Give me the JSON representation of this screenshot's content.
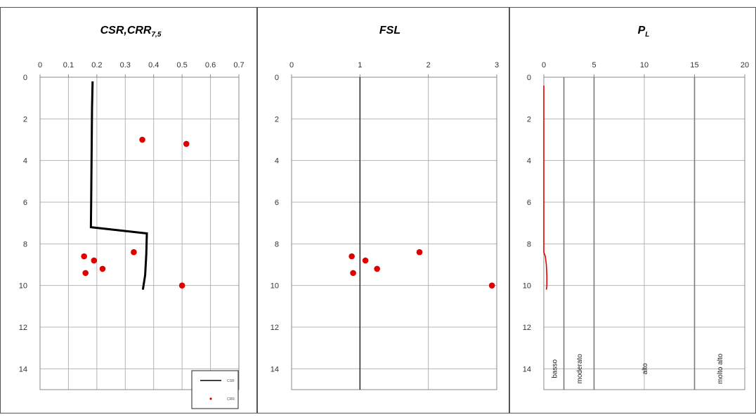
{
  "chart_data": [
    {
      "type": "scatter",
      "title": "CSR,CRR",
      "title_subscript": "7,5",
      "xlim": [
        0,
        0.7
      ],
      "ylim": [
        0,
        15
      ],
      "x_ticks": [
        "0",
        "0.1",
        "0.2",
        "0.3",
        "0.4",
        "0.5",
        "0.6",
        "0.7"
      ],
      "y_ticks": [
        "0",
        "2",
        "4",
        "6",
        "8",
        "10",
        "12",
        "14"
      ],
      "legend": {
        "position": "bottom-right",
        "entries": [
          "CSR",
          "CRR"
        ]
      },
      "series": [
        {
          "name": "CSR",
          "style": "line",
          "color": "#000000",
          "points": [
            [
              0.185,
              0.2
            ],
            [
              0.183,
              1.5
            ],
            [
              0.182,
              3
            ],
            [
              0.181,
              4.5
            ],
            [
              0.18,
              6
            ],
            [
              0.179,
              7.2
            ],
            [
              0.376,
              7.5
            ],
            [
              0.374,
              8.5
            ],
            [
              0.37,
              9.5
            ],
            [
              0.362,
              10.2
            ]
          ]
        },
        {
          "name": "CRR",
          "style": "points",
          "color": "#e00000",
          "points": [
            [
              0.36,
              3.0
            ],
            [
              0.515,
              3.2
            ],
            [
              0.33,
              8.4
            ],
            [
              0.155,
              8.6
            ],
            [
              0.19,
              8.8
            ],
            [
              0.22,
              9.2
            ],
            [
              0.16,
              9.4
            ],
            [
              0.5,
              10.0
            ]
          ]
        }
      ]
    },
    {
      "type": "scatter",
      "title": "FSL",
      "xlim": [
        0,
        3
      ],
      "ylim": [
        0,
        15
      ],
      "x_ticks": [
        "0",
        "1",
        "2",
        "3"
      ],
      "y_ticks": [
        "0",
        "2",
        "4",
        "6",
        "8",
        "10",
        "12",
        "14"
      ],
      "reference_line_x": 1,
      "series": [
        {
          "name": "FSL",
          "style": "points",
          "color": "#e00000",
          "points": [
            [
              1.87,
              8.4
            ],
            [
              0.88,
              8.6
            ],
            [
              1.08,
              8.8
            ],
            [
              1.25,
              9.2
            ],
            [
              0.9,
              9.4
            ],
            [
              2.93,
              10.0
            ]
          ]
        }
      ]
    },
    {
      "type": "line",
      "title": "P",
      "title_subscript": "L",
      "xlim": [
        0,
        20
      ],
      "ylim": [
        0,
        15
      ],
      "x_ticks": [
        "0",
        "5",
        "10",
        "15",
        "20"
      ],
      "y_ticks": [
        "0",
        "2",
        "4",
        "6",
        "8",
        "10",
        "12",
        "14"
      ],
      "zone_boundaries": [
        2,
        5,
        15
      ],
      "zones": [
        {
          "label": "basso",
          "x": 1
        },
        {
          "label": "moderato",
          "x": 3.5
        },
        {
          "label": "alto",
          "x": 10
        },
        {
          "label": "molto alto",
          "x": 17.5
        }
      ],
      "series": [
        {
          "name": "PL",
          "style": "line",
          "color": "#e00000",
          "points": [
            [
              0,
              0.4
            ],
            [
              0,
              2
            ],
            [
              0,
              4
            ],
            [
              0,
              6
            ],
            [
              0,
              8
            ],
            [
              0,
              8.4
            ],
            [
              0.15,
              8.6
            ],
            [
              0.25,
              9.0
            ],
            [
              0.3,
              9.5
            ],
            [
              0.3,
              10.0
            ],
            [
              0.25,
              10.2
            ]
          ]
        }
      ]
    }
  ],
  "colors": {
    "grid": "#b4b4b4",
    "axis": "#888888",
    "frame": "#555555"
  }
}
